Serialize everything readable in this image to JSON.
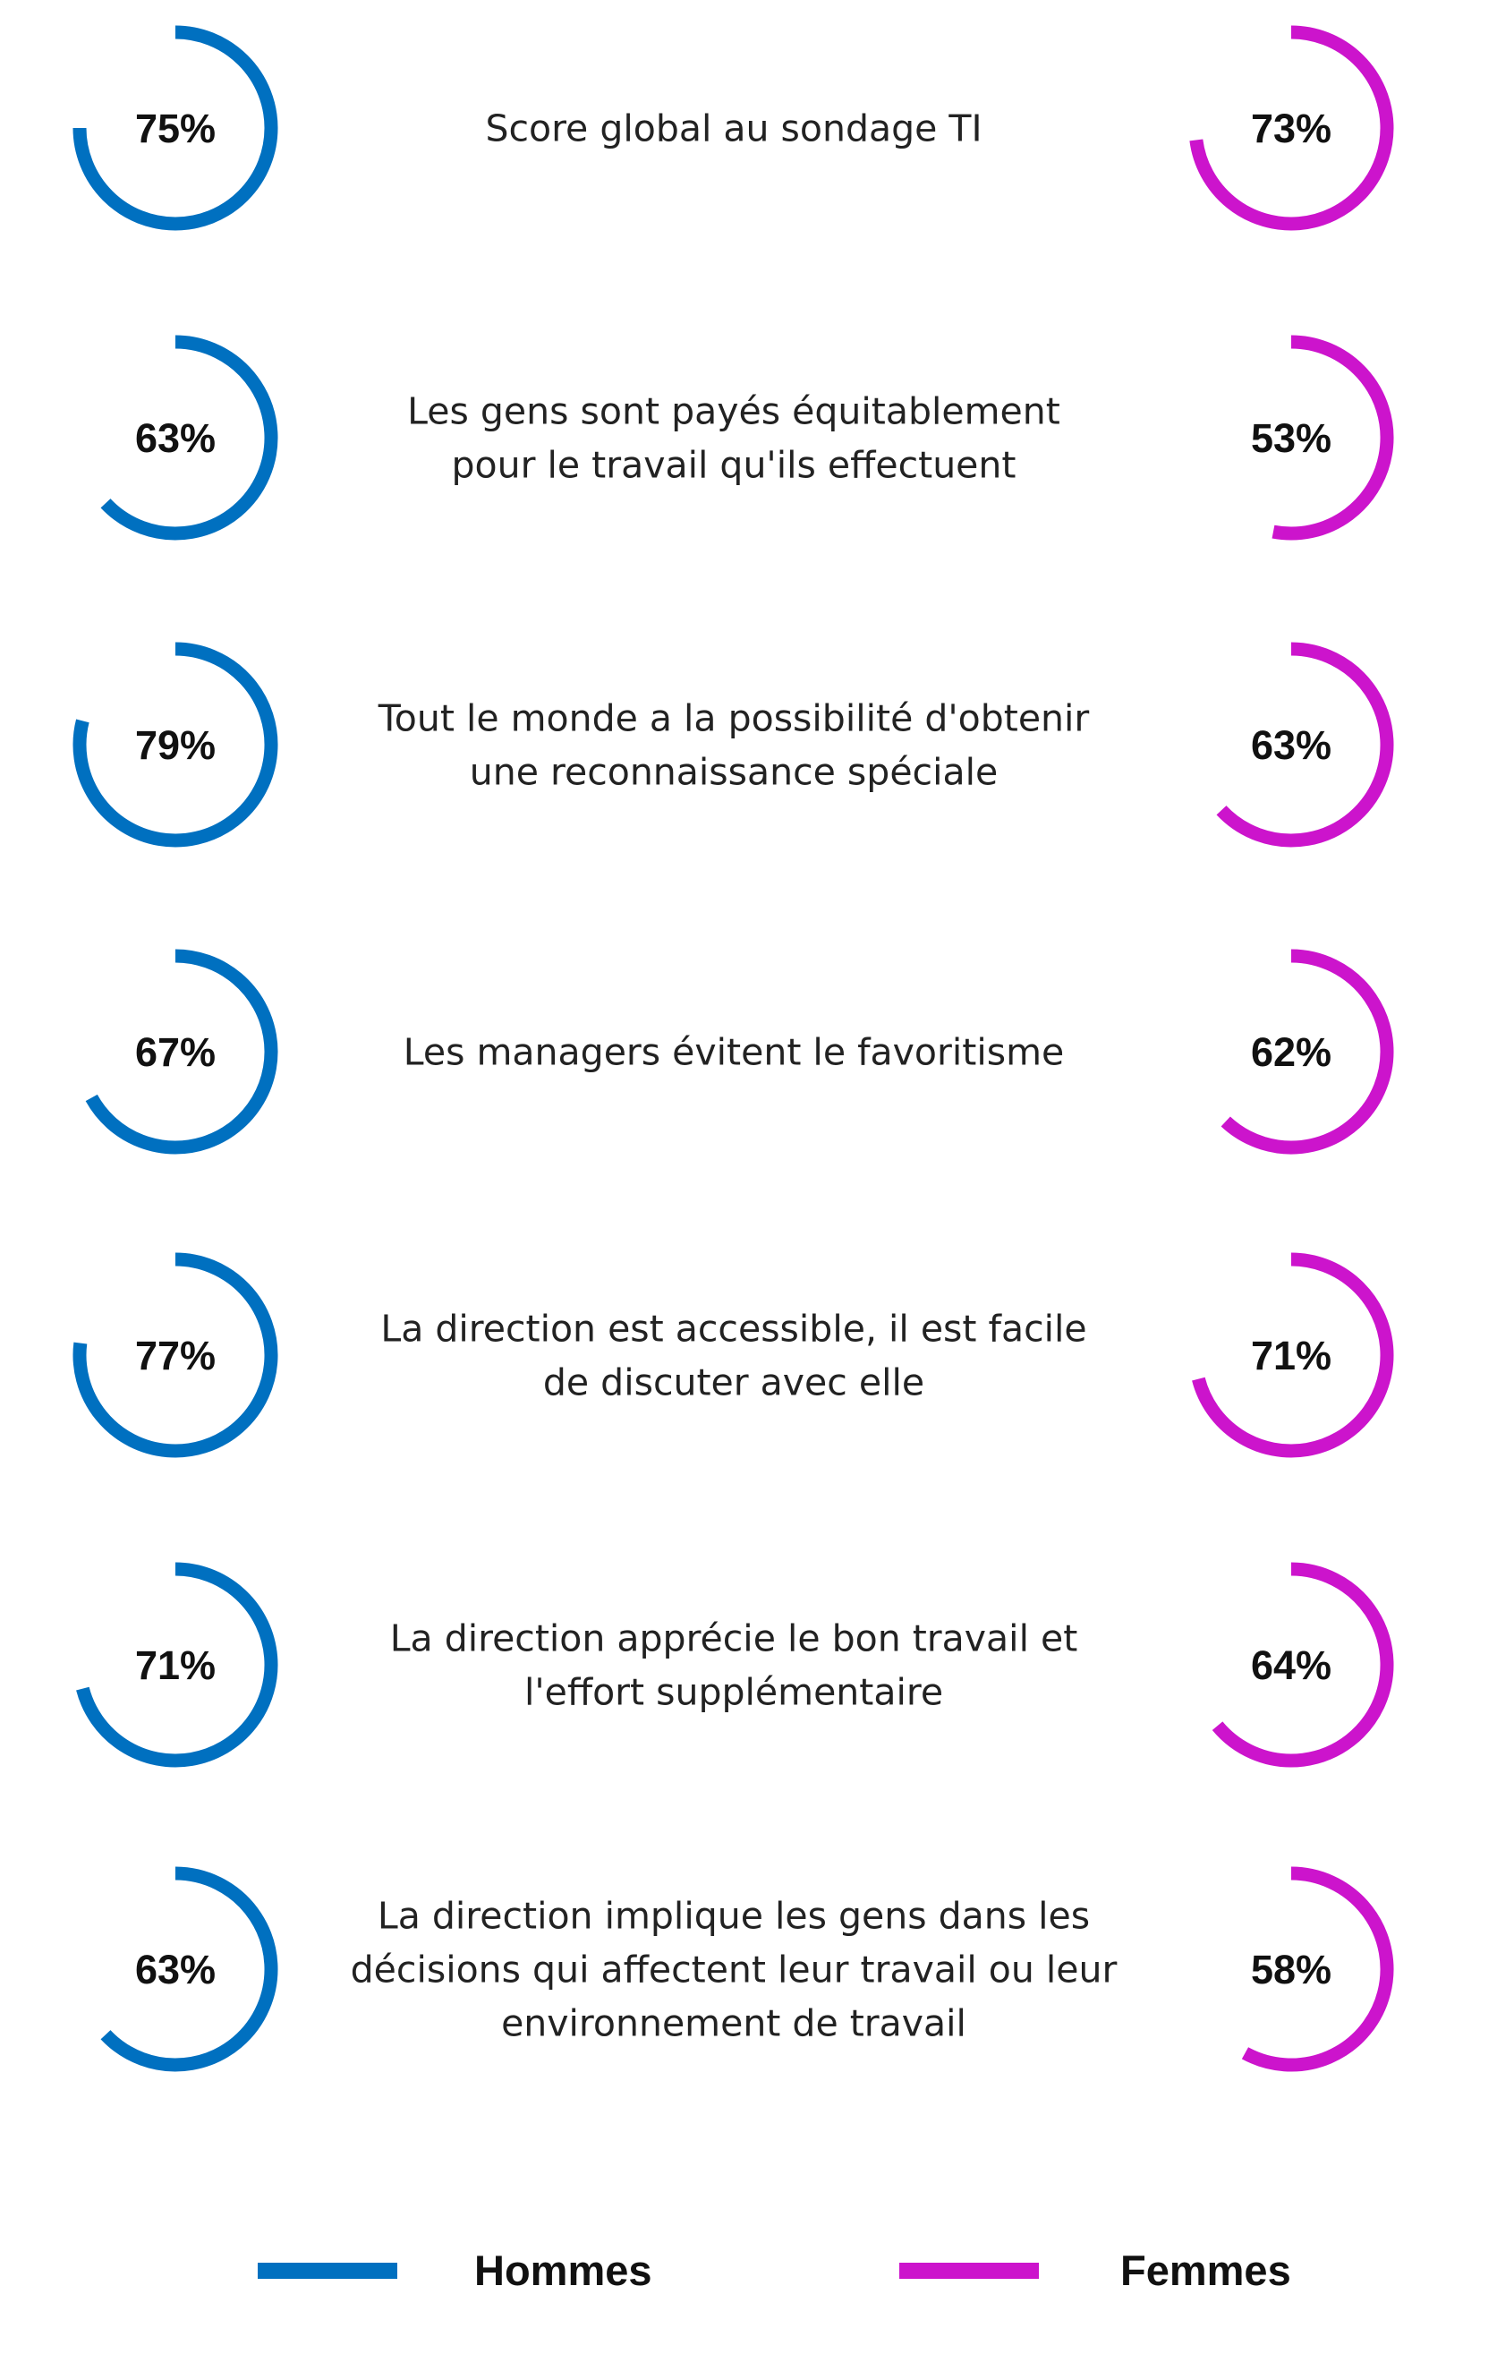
{
  "chart_data": {
    "type": "radial-progress",
    "title": "",
    "colors": {
      "hommes": "#0070C0",
      "femmes": "#CC14CC"
    },
    "series": [
      {
        "name": "Hommes",
        "color": "#0070C0"
      },
      {
        "name": "Femmes",
        "color": "#CC14CC"
      }
    ],
    "rows": [
      {
        "label": [
          "Score global au sondage TI"
        ],
        "hommes": 75,
        "femmes": 73
      },
      {
        "label": [
          "Les gens sont payés équitablement",
          "pour le travail qu'ils effectuent"
        ],
        "hommes": 63,
        "femmes": 53
      },
      {
        "label": [
          "Tout le monde a la possibilité d'obtenir",
          "une reconnaissance spéciale"
        ],
        "hommes": 79,
        "femmes": 63
      },
      {
        "label": [
          "Les managers évitent le favoritisme"
        ],
        "hommes": 67,
        "femmes": 62
      },
      {
        "label": [
          "La direction est accessible, il est facile",
          "de discuter avec elle"
        ],
        "hommes": 77,
        "femmes": 71
      },
      {
        "label": [
          "La direction apprécie le bon travail et",
          "l'effort supplémentaire"
        ],
        "hommes": 71,
        "femmes": 64
      },
      {
        "label": [
          "La direction implique les gens dans les",
          "décisions qui affectent leur travail ou leur",
          "environnement de travail"
        ],
        "hommes": 63,
        "femmes": 58
      }
    ],
    "legend": {
      "hommes": "Hommes",
      "femmes": "Femmes",
      "position": "bottom"
    }
  }
}
